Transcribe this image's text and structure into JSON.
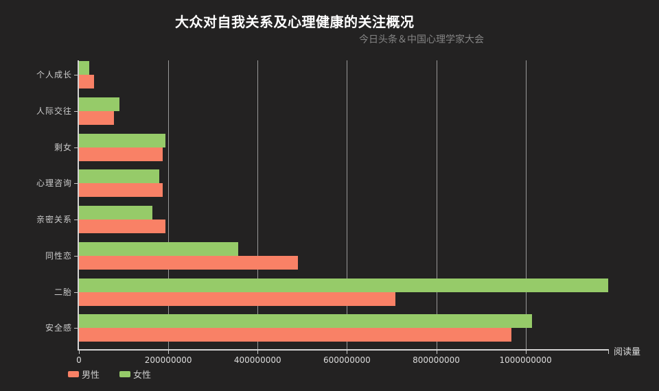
{
  "title": "大众对自我关系及心理健康的关注概况",
  "subtitle": "今日头条＆中国心理学家大会",
  "colors": {
    "background": "#232222",
    "male": "#f98166",
    "female": "#96cb69",
    "axis": "#d4d4d4",
    "gridline": "#9a9a9a",
    "text": "#cccccc"
  },
  "chart_data": {
    "type": "bar",
    "orientation": "horizontal",
    "title": "大众对自我关系及心理健康的关注概况",
    "subtitle": "今日头条＆中国心理学家大会",
    "xlabel": "阅读量",
    "categories": [
      "个人成长",
      "人际交往",
      "剩女",
      "心理咨询",
      "亲密关系",
      "同性恋",
      "二胎",
      "安全感"
    ],
    "series": [
      {
        "name": "男性",
        "color": "#f98166",
        "values": [
          34000000,
          78000000,
          187000000,
          188000000,
          193000000,
          490000000,
          709000000,
          969000000
        ]
      },
      {
        "name": "女性",
        "color": "#96cb69",
        "values": [
          23000000,
          90000000,
          193000000,
          180000000,
          165000000,
          357000000,
          1185000000,
          1014000000
        ]
      }
    ],
    "xlim": [
      0,
      1185000000
    ],
    "xticks": [
      0,
      200000000,
      400000000,
      600000000,
      800000000,
      1000000000
    ],
    "grid": true,
    "legend_position": "bottom-left",
    "bar_order_in_group": [
      "女性",
      "男性"
    ]
  }
}
